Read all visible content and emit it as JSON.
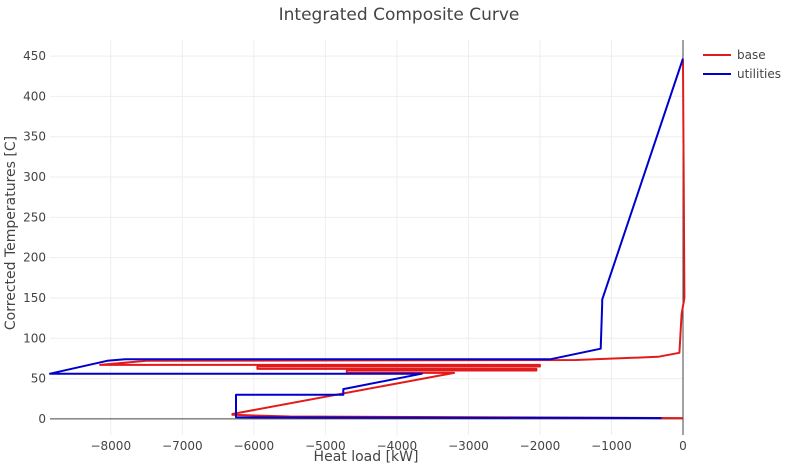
{
  "chart_data": {
    "type": "line",
    "title": "Integrated Composite Curve",
    "xlabel": "Heat load [kW]",
    "ylabel": "Corrected Temperatures [C]",
    "xlim": [
      -8850,
      0
    ],
    "ylim": [
      -20,
      470
    ],
    "x_ticks": [
      -8000,
      -7000,
      -6000,
      -5000,
      -4000,
      -3000,
      -2000,
      -1000,
      0
    ],
    "x_tick_labels": [
      "−8000",
      "−7000",
      "−6000",
      "−5000",
      "−4000",
      "−3000",
      "−2000",
      "−1000",
      "0"
    ],
    "y_ticks": [
      0,
      50,
      100,
      150,
      200,
      250,
      300,
      350,
      400,
      450
    ],
    "y_tick_labels": [
      "0",
      "50",
      "100",
      "150",
      "200",
      "250",
      "300",
      "350",
      "400",
      "450"
    ],
    "grid": true,
    "legend_position": "top-right",
    "colors": {
      "base": "#e31a1c",
      "utilities": "#0000cc",
      "zero_line": "#444444",
      "grid": "#eeeeee"
    },
    "series": [
      {
        "name": "base",
        "color": "#e31a1c",
        "x": [
          0,
          0,
          20,
          -20,
          -50,
          -350,
          -1500,
          -7500,
          -8150,
          -2000,
          -2000,
          -5950,
          -5950,
          -2050,
          -2050,
          -4700,
          -4700,
          -3200,
          -6300,
          -6300,
          -5500,
          0
        ],
        "y": [
          445,
          440,
          150,
          130,
          82,
          77,
          73,
          72,
          67,
          67,
          65,
          65,
          62,
          62,
          60,
          60,
          57,
          57,
          6,
          5,
          3,
          1
        ]
      },
      {
        "name": "utilities",
        "color": "#0000cc",
        "x": [
          0,
          -1130,
          -1130,
          -1150,
          -1850,
          -7800,
          -8050,
          -8850,
          -3650,
          -4750,
          -4750,
          -6250,
          -6250,
          -300
        ],
        "y": [
          447,
          148,
          143,
          87,
          74,
          74,
          72,
          56,
          56,
          37,
          30,
          30,
          2,
          1
        ]
      }
    ]
  }
}
